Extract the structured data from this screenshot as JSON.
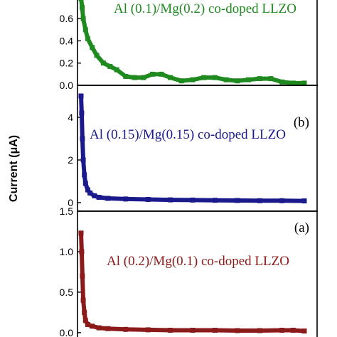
{
  "chart_data": {
    "type": "line",
    "ylabel": "Current (μA)",
    "panels": [
      {
        "id": "c",
        "label": "",
        "annotation": "Al (0.1)/Mg(0.2) co-doped LLZO",
        "color": "#1f8a1f",
        "ylim": [
          0,
          0.78
        ],
        "yticks": [
          "0.0",
          "0.2",
          "0.4",
          "0.6"
        ],
        "ytick_values": [
          0,
          0.2,
          0.4,
          0.6
        ],
        "series": [
          {
            "x": [
              0,
              0.005,
              0.01,
              0.02,
              0.03,
              0.05,
              0.07,
              0.1,
              0.13,
              0.16,
              0.2,
              0.24,
              0.28,
              0.32,
              0.36,
              0.4,
              0.45,
              0.5,
              0.55,
              0.6,
              0.65,
              0.7,
              0.75,
              0.8,
              0.85,
              0.9,
              0.95,
              1.0
            ],
            "y": [
              0.78,
              0.7,
              0.6,
              0.5,
              0.42,
              0.34,
              0.27,
              0.2,
              0.17,
              0.14,
              0.08,
              0.07,
              0.07,
              0.1,
              0.1,
              0.07,
              0.04,
              0.05,
              0.07,
              0.07,
              0.05,
              0.04,
              0.05,
              0.06,
              0.06,
              0.03,
              0.02,
              0.02
            ]
          }
        ]
      },
      {
        "id": "b",
        "label": "(b)",
        "annotation": "Al (0.15)/Mg(0.15) co-doped LLZO",
        "color": "#1a1a8c",
        "ylim": [
          -0.4,
          5.5
        ],
        "yticks": [
          "0",
          "2",
          "4"
        ],
        "ytick_values": [
          0,
          2,
          4
        ],
        "series": [
          {
            "x": [
              0,
              0.003,
              0.006,
              0.01,
              0.015,
              0.02,
              0.03,
              0.04,
              0.06,
              0.08,
              0.12,
              0.2,
              0.3,
              0.4,
              0.5,
              0.6,
              0.7,
              0.8,
              0.9,
              1.0
            ],
            "y": [
              5.0,
              4.2,
              3.0,
              2.0,
              1.3,
              0.9,
              0.6,
              0.45,
              0.32,
              0.25,
              0.2,
              0.17,
              0.15,
              0.13,
              0.12,
              0.11,
              0.1,
              0.09,
              0.09,
              0.08
            ]
          }
        ]
      },
      {
        "id": "a",
        "label": "(a)",
        "annotation": "Al (0.2)/Mg(0.1) co-doped LLZO",
        "color": "#8b1a1a",
        "ylim": [
          -0.08,
          1.5
        ],
        "yticks": [
          "0.0",
          "0.5",
          "1.0",
          "1.5"
        ],
        "ytick_values": [
          0,
          0.5,
          1.0,
          1.5
        ],
        "series": [
          {
            "x": [
              0,
              0.003,
              0.006,
              0.01,
              0.015,
              0.02,
              0.03,
              0.05,
              0.08,
              0.12,
              0.2,
              0.3,
              0.4,
              0.5,
              0.6,
              0.7,
              0.8,
              0.9,
              0.95,
              1.0
            ],
            "y": [
              1.23,
              1.0,
              0.7,
              0.4,
              0.25,
              0.15,
              0.1,
              0.08,
              0.06,
              0.05,
              0.04,
              0.035,
              0.03,
              0.03,
              0.03,
              0.025,
              0.025,
              0.03,
              0.03,
              0.02
            ]
          }
        ]
      }
    ]
  }
}
